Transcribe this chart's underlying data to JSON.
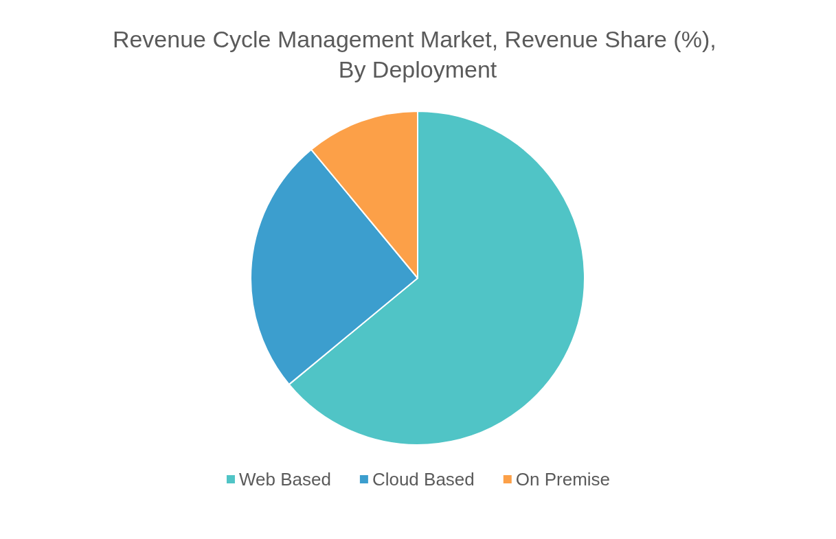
{
  "chart_data": {
    "type": "pie",
    "title": "Revenue Cycle Management Market, Revenue Share (%), By Deployment",
    "categories": [
      "Web Based",
      "Cloud Based",
      "On Premise"
    ],
    "values": [
      64,
      25,
      11
    ],
    "colors": [
      "#50c4c6",
      "#3c9ece",
      "#fca048"
    ],
    "legend": "bottom"
  }
}
